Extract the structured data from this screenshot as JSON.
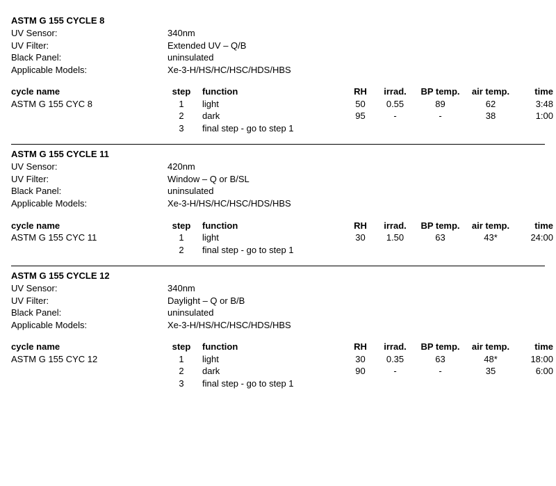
{
  "meta_labels": {
    "uv_sensor": "UV Sensor:",
    "uv_filter": "UV Filter:",
    "black_panel": "Black Panel:",
    "models": "Applicable Models:"
  },
  "headers": {
    "cycle_name": "cycle name",
    "step": "step",
    "function": "function",
    "rh": "RH",
    "irrad": "irrad.",
    "bp_temp": "BP temp.",
    "air_temp": "air temp.",
    "time": "time"
  },
  "sections": [
    {
      "title": "ASTM G 155 CYCLE 8",
      "meta": {
        "uv_sensor": "340nm",
        "uv_filter": "Extended UV – Q/B",
        "black_panel": "uninsulated",
        "models": "Xe-3-H/HS/HC/HSC/HDS/HBS"
      },
      "cycle_name": "ASTM G 155 CYC 8",
      "rows": [
        {
          "step": "1",
          "func": "light",
          "rh": "50",
          "irrad": "0.55",
          "bp": "89",
          "air": "62",
          "time": "3:48"
        },
        {
          "step": "2",
          "func": "dark",
          "rh": "95",
          "irrad": "-",
          "bp": "-",
          "air": "38",
          "time": "1:00"
        },
        {
          "step": "3",
          "func": "final step - go to step 1",
          "rh": "",
          "irrad": "",
          "bp": "",
          "air": "",
          "time": ""
        }
      ]
    },
    {
      "title": "ASTM G 155 CYCLE 11",
      "meta": {
        "uv_sensor": "420nm",
        "uv_filter": "Window – Q or B/SL",
        "black_panel": "uninsulated",
        "models": "Xe-3-H/HS/HC/HSC/HDS/HBS"
      },
      "cycle_name": "ASTM G 155 CYC 11",
      "rows": [
        {
          "step": "1",
          "func": "light",
          "rh": "30",
          "irrad": "1.50",
          "bp": "63",
          "air": "43*",
          "time": "24:00"
        },
        {
          "step": "2",
          "func": "final step - go to step 1",
          "rh": "",
          "irrad": "",
          "bp": "",
          "air": "",
          "time": ""
        }
      ]
    },
    {
      "title": "ASTM G 155 CYCLE 12",
      "meta": {
        "uv_sensor": "340nm",
        "uv_filter": "Daylight – Q or B/B",
        "black_panel": "uninsulated",
        "models": "Xe-3-H/HS/HC/HSC/HDS/HBS"
      },
      "cycle_name": "ASTM G 155 CYC 12",
      "rows": [
        {
          "step": "1",
          "func": "light",
          "rh": "30",
          "irrad": "0.35",
          "bp": "63",
          "air": "48*",
          "time": "18:00"
        },
        {
          "step": "2",
          "func": "dark",
          "rh": "90",
          "irrad": "-",
          "bp": "-",
          "air": "35",
          "time": "6:00"
        },
        {
          "step": "3",
          "func": "final step - go to step 1",
          "rh": "",
          "irrad": "",
          "bp": "",
          "air": "",
          "time": ""
        }
      ]
    }
  ]
}
